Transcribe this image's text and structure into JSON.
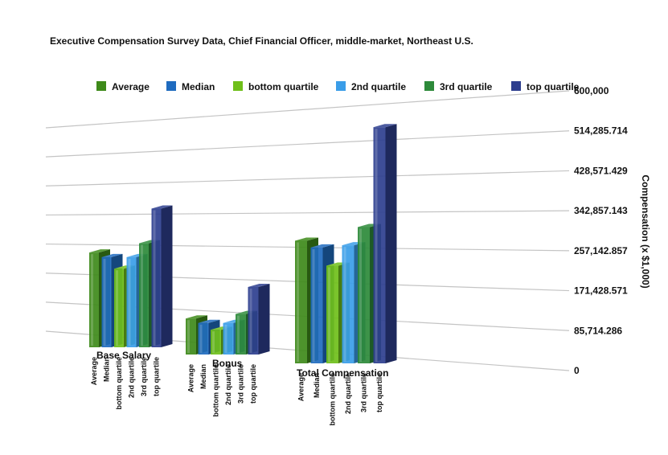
{
  "chart_data": {
    "type": "bar",
    "title": "Executive Compensation Survey Data, Chief Financial Officer, middle-market, Northeast U.S.",
    "ylabel": "Compensation (x $1,000)",
    "ylim": [
      0,
      600000
    ],
    "yticks": [
      "0",
      "85,714.286",
      "171,428.571",
      "257,142.857",
      "342,857.143",
      "428,571.429",
      "514,285.714",
      "600,000"
    ],
    "grid": true,
    "legend_position": "top",
    "categories": [
      "Base Salary",
      "Bonus",
      "Total Compensation"
    ],
    "series": [
      {
        "name": "Average",
        "color": "#3e8a1a",
        "values": [
          205000,
          80000,
          270000
        ]
      },
      {
        "name": "Median",
        "color": "#1f6bbf",
        "values": [
          195000,
          70000,
          255000
        ]
      },
      {
        "name": "bottom quartile",
        "color": "#6fbf1a",
        "values": [
          170000,
          55000,
          215000
        ]
      },
      {
        "name": "2nd quartile",
        "color": "#3a9de8",
        "values": [
          195000,
          70000,
          260000
        ]
      },
      {
        "name": "3rd quartile",
        "color": "#2d8a3a",
        "values": [
          225000,
          90000,
          300000
        ]
      },
      {
        "name": "top quartile",
        "color": "#2e3f8f",
        "values": [
          300000,
          150000,
          520000
        ]
      }
    ]
  }
}
